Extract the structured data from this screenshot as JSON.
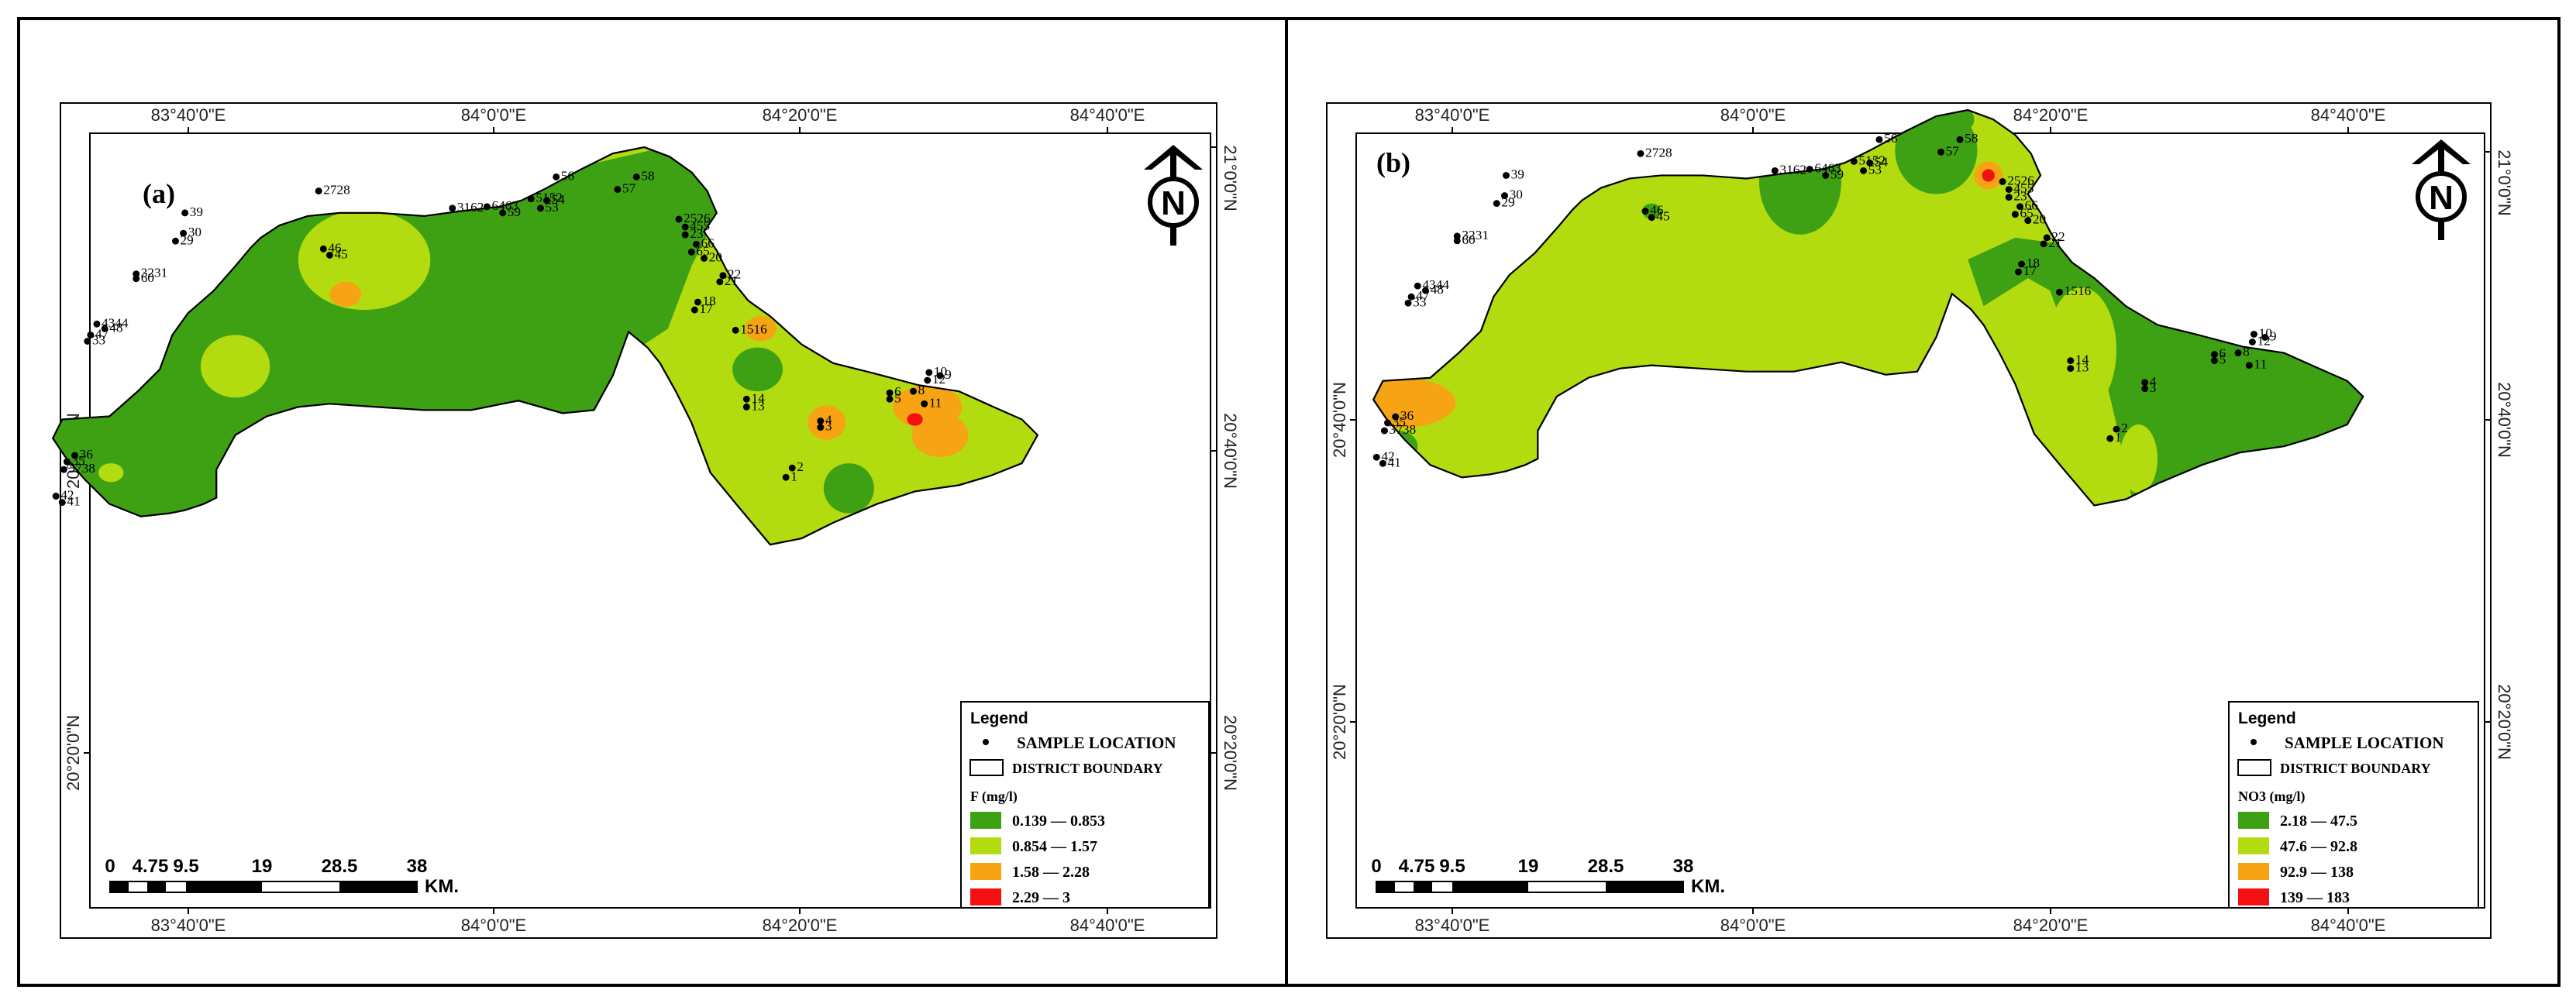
{
  "panels": [
    {
      "id": "a",
      "panel_label": "(a)",
      "north_label": "N",
      "top_ticks": [
        "83°40'0\"E",
        "84°0'0\"E",
        "84°20'0\"E",
        "84°40'0\"E"
      ],
      "bottom_ticks": [
        "83°40'0\"E",
        "84°0'0\"E",
        "84°20'0\"E",
        "84°40'0\"E"
      ],
      "left_ticks": [
        "20°40'0\"N",
        "20°20'0\"N"
      ],
      "right_ticks": [
        "21°0'0\"N",
        "20°40'0\"N",
        "20°20'0\"N"
      ],
      "legend": {
        "title": "Legend",
        "sample_location": "SAMPLE LOCATION",
        "district_boundary": "DISTRICT BOUNDARY",
        "parameter": "F (mg/l)",
        "classes": [
          {
            "label": "0.139 — 0.853",
            "color": "#3ea114"
          },
          {
            "label": "0.854 — 1.57",
            "color": "#b3dc10"
          },
          {
            "label": "1.58 — 2.28",
            "color": "#f6a314"
          },
          {
            "label": "2.29 — 3",
            "color": "#f21010"
          }
        ]
      },
      "scalebar": {
        "ticks": [
          "0",
          "4.75",
          "9.5",
          "19",
          "28.5",
          "38"
        ],
        "unit": "KM."
      },
      "samples": [
        "39",
        "2728",
        "3162",
        "5152",
        "54",
        "53",
        "56",
        "58",
        "57",
        "6463",
        "59",
        "2526",
        "455",
        "23",
        "66",
        "65",
        "30",
        "29",
        "46",
        "45",
        "3231",
        "60",
        "22",
        "21",
        "20",
        "18",
        "17",
        "1516",
        "4344",
        "48",
        "47",
        "33",
        "14",
        "13",
        "4",
        "3",
        "6",
        "5",
        "8",
        "11",
        "10",
        "9",
        "12",
        "2",
        "1",
        "3738",
        "36",
        "35",
        "42",
        "41"
      ]
    },
    {
      "id": "b",
      "panel_label": "(b)",
      "north_label": "N",
      "top_ticks": [
        "83°40'0\"E",
        "84°0'0\"E",
        "84°20'0\"E",
        "84°40'0\"E"
      ],
      "bottom_ticks": [
        "83°40'0\"E",
        "84°0'0\"E",
        "84°20'0\"E",
        "84°40'0\"E"
      ],
      "left_ticks": [
        "20°40'0\"N",
        "20°20'0\"N"
      ],
      "right_ticks": [
        "21°0'0\"N",
        "20°40'0\"N",
        "20°20'0\"N"
      ],
      "legend": {
        "title": "Legend",
        "sample_location": "SAMPLE LOCATION",
        "district_boundary": "DISTRICT BOUNDARY",
        "parameter": "NO3 (mg/l)",
        "classes": [
          {
            "label": "2.18 — 47.5",
            "color": "#3ea114"
          },
          {
            "label": "47.6 — 92.8",
            "color": "#b3dc10"
          },
          {
            "label": "92.9 — 138",
            "color": "#f6a314"
          },
          {
            "label": "139 — 183",
            "color": "#f21010"
          }
        ]
      },
      "scalebar": {
        "ticks": [
          "0",
          "4.75",
          "9.5",
          "19",
          "28.5",
          "38"
        ],
        "unit": "KM."
      },
      "samples": [
        "39",
        "2728",
        "3162",
        "5152",
        "54",
        "53",
        "56",
        "58",
        "57",
        "6463",
        "59",
        "2526",
        "455",
        "23",
        "66",
        "65",
        "30",
        "29",
        "46",
        "45",
        "3231",
        "60",
        "22",
        "21",
        "20",
        "18",
        "17",
        "1516",
        "4344",
        "48",
        "47",
        "33",
        "14",
        "13",
        "4",
        "3",
        "6",
        "5",
        "8",
        "11",
        "10",
        "9",
        "12",
        "2",
        "1",
        "3738",
        "36",
        "35",
        "42",
        "41"
      ]
    }
  ]
}
